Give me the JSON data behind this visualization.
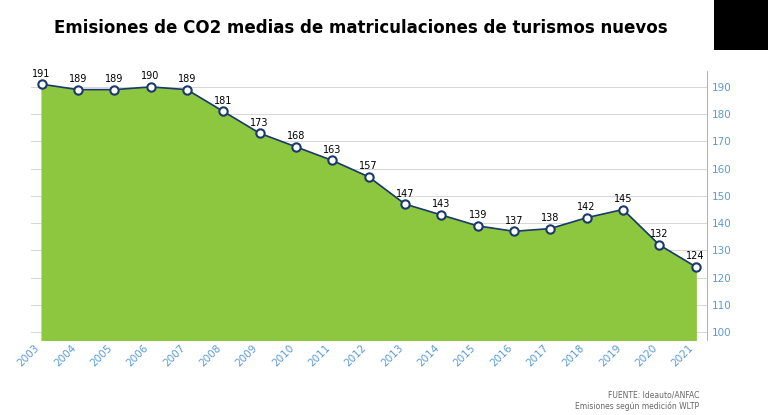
{
  "title": "Emisiones de CO2 medias de matriculaciones de turismos nuevos",
  "years": [
    2003,
    2004,
    2005,
    2006,
    2007,
    2008,
    2009,
    2010,
    2011,
    2012,
    2013,
    2014,
    2015,
    2016,
    2017,
    2018,
    2019,
    2020,
    2021
  ],
  "values": [
    191,
    189,
    189,
    190,
    189,
    181,
    173,
    168,
    163,
    157,
    147,
    143,
    139,
    137,
    138,
    142,
    145,
    132,
    124
  ],
  "fill_color": "#8dc63f",
  "line_color": "#1a3a6b",
  "marker_face": "#ffffff",
  "marker_edge": "#1a3a6b",
  "y_min": 97,
  "y_max": 196,
  "y_ticks": [
    100,
    110,
    120,
    130,
    140,
    150,
    160,
    170,
    180,
    190
  ],
  "right_axis_color": "#5b9bd5",
  "x_label_color": "#5b9bd5",
  "source_text": "FUENTE: Ideauto/ANFAC\nEmisiones según medición WLTP",
  "background_color": "#ffffff",
  "title_fontsize": 12,
  "label_fontsize": 7.5,
  "annotation_fontsize": 7
}
